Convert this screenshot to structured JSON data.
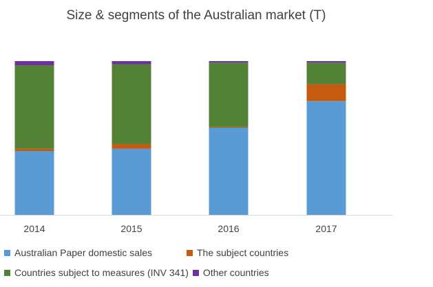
{
  "chart_data": {
    "type": "bar",
    "stacked": true,
    "title": "Size & segments of the Australian market (T)",
    "xlabel": "",
    "ylabel": "",
    "categories": [
      "2014",
      "2015",
      "2016",
      "2017"
    ],
    "ylim": [
      0,
      100
    ],
    "series": [
      {
        "name": "Australian Paper domestic sales",
        "color": "#5b9bd5",
        "values": [
          41.5,
          43,
          56.7,
          74
        ]
      },
      {
        "name": "The subject countries",
        "color": "#c55a11",
        "values": [
          1.5,
          3,
          0.5,
          11
        ]
      },
      {
        "name": "Countries subject to measures (INV 341)",
        "color": "#538135",
        "values": [
          54.3,
          52,
          41.8,
          14
        ]
      },
      {
        "name": "Other countries",
        "color": "#7030a0",
        "values": [
          2.7,
          2,
          1,
          1
        ]
      }
    ],
    "legend_position": "bottom",
    "grid": false
  }
}
